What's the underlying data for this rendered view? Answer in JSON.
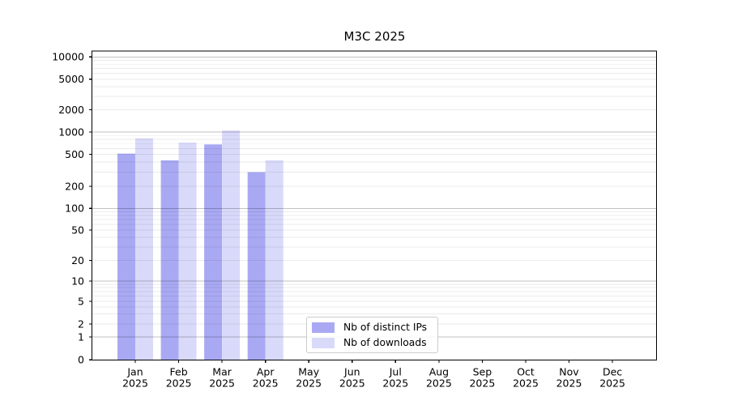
{
  "figure": {
    "background": "#ffffff"
  },
  "chart_data": {
    "type": "bar",
    "title": "M3C 2025",
    "yscale": "symlog",
    "grid": "both",
    "legend_position": "lower-center",
    "ylim": [
      0,
      12000
    ],
    "yticks": [
      0,
      1,
      2,
      5,
      10,
      20,
      50,
      100,
      200,
      500,
      1000,
      2000,
      5000,
      10000
    ],
    "categories": [
      "Jan",
      "Feb",
      "Mar",
      "Apr",
      "May",
      "Jun",
      "Jul",
      "Aug",
      "Sep",
      "Oct",
      "Nov",
      "Dec"
    ],
    "year": "2025",
    "series": [
      {
        "name": "Nb of distinct IPs",
        "color": "#a9a9f3",
        "values": [
          510,
          420,
          680,
          300,
          null,
          null,
          null,
          null,
          null,
          null,
          null,
          null
        ]
      },
      {
        "name": "Nb of downloads",
        "color": "#d9d9fa",
        "values": [
          820,
          720,
          1050,
          420,
          null,
          null,
          null,
          null,
          null,
          null,
          null,
          null
        ]
      }
    ],
    "colors": {
      "spine": "#000000",
      "grid_major": "rgba(0,0,0,0.24)",
      "grid_minor": "rgba(0,0,0,0.08)"
    }
  }
}
